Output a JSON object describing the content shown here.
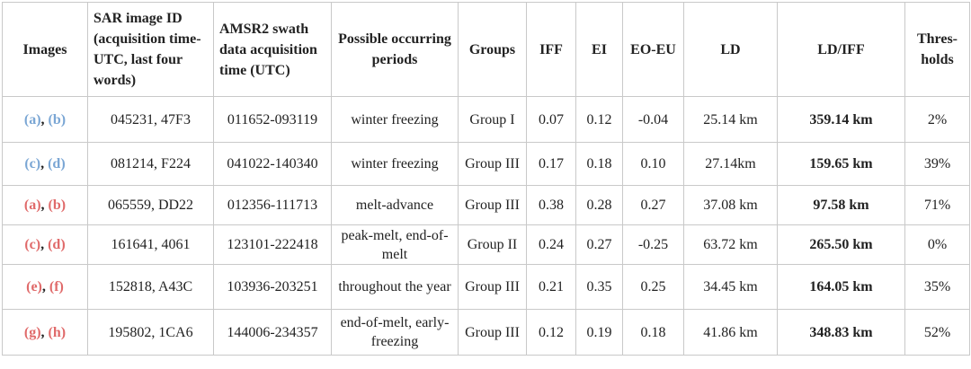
{
  "headers": {
    "images": "Images",
    "sar": "SAR image ID (acquisition time-UTC, last four words)",
    "amsr2": "AMSR2 swath data acquisition time (UTC)",
    "periods": "Possible occurring periods",
    "groups": "Groups",
    "iff": "IFF",
    "ei": "EI",
    "eoeu": "EO-EU",
    "ld": "LD",
    "ldiff": "LD/IFF",
    "thresholds": "Thres-holds"
  },
  "colors": {
    "blue_label": "#7aa6d4",
    "red_label": "#e06a6a"
  },
  "rows": [
    {
      "img1": "(a)",
      "img2": "(b)",
      "sep": ", ",
      "color": "blue",
      "sar": "045231, 47F3",
      "amsr2": "011652-093119",
      "period": "winter freezing",
      "group": "Group I",
      "iff": "0.07",
      "ei": "0.12",
      "eoeu": "-0.04",
      "ld": "25.14 km",
      "ldiff": "359.14 km",
      "threshold": "2%"
    },
    {
      "img1": "(c)",
      "img2": "(d)",
      "sep": ", ",
      "color": "blue",
      "sar": "081214, F224",
      "amsr2": "041022-140340",
      "period": "winter freezing",
      "group": "Group III",
      "iff": "0.17",
      "ei": "0.18",
      "eoeu": "0.10",
      "ld": "27.14km",
      "ldiff": "159.65 km",
      "threshold": "39%"
    },
    {
      "img1": "(a)",
      "img2": "(b)",
      "sep": ", ",
      "color": "red",
      "sar": "065559, DD22",
      "amsr2": "012356-111713",
      "period": "melt-advance",
      "group": "Group III",
      "iff": "0.38",
      "ei": "0.28",
      "eoeu": "0.27",
      "ld": "37.08 km",
      "ldiff": "97.58 km",
      "threshold": "71%"
    },
    {
      "img1": "(c)",
      "img2": "(d)",
      "sep": ", ",
      "color": "red",
      "sar": "161641, 4061",
      "amsr2": "123101-222418",
      "period": "peak-melt, end-of-melt",
      "group": "Group II",
      "iff": "0.24",
      "ei": "0.27",
      "eoeu": "-0.25",
      "ld": "63.72 km",
      "ldiff": "265.50 km",
      "threshold": "0%"
    },
    {
      "img1": "(e)",
      "img2": "(f)",
      "sep": ", ",
      "color": "red",
      "sar": "152818, A43C",
      "amsr2": "103936-203251",
      "period": "throughout the year",
      "group": "Group III",
      "iff": "0.21",
      "ei": "0.35",
      "eoeu": "0.25",
      "ld": "34.45 km",
      "ldiff": "164.05 km",
      "threshold": "35%"
    },
    {
      "img1": "(g)",
      "img2": "(h)",
      "sep": ", ",
      "color": "red",
      "sar": "195802, 1CA6",
      "amsr2": "144006-234357",
      "period": "end-of-melt, early-freezing",
      "group": "Group III",
      "iff": "0.12",
      "ei": "0.19",
      "eoeu": "0.18",
      "ld": "41.86 km",
      "ldiff": "348.83 km",
      "threshold": "52%"
    }
  ]
}
